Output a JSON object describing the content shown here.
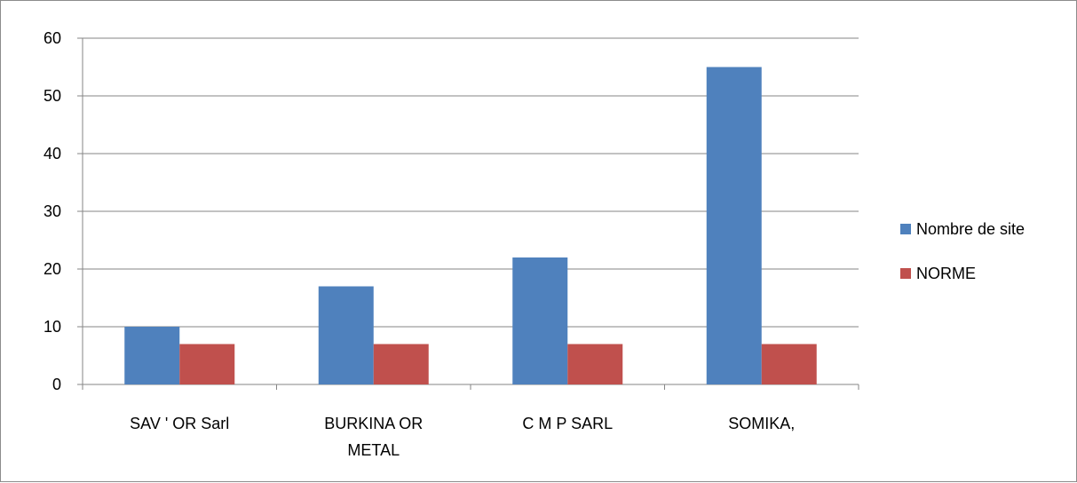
{
  "chart_data": {
    "type": "bar",
    "categories": [
      [
        "SAV ' OR Sarl"
      ],
      [
        "BURKINA OR",
        "METAL"
      ],
      [
        "C M P SARL"
      ],
      [
        "SOMIKA,"
      ]
    ],
    "series": [
      {
        "name": "Nombre de site",
        "values": [
          10,
          17,
          22,
          55
        ],
        "color": "#4f81bd"
      },
      {
        "name": "NORME",
        "values": [
          7,
          7,
          7,
          7
        ],
        "color": "#c0504d"
      }
    ],
    "ylim": [
      0,
      60
    ],
    "yticks": [
      0,
      10,
      20,
      30,
      40,
      50,
      60
    ],
    "grid": true,
    "legend": "right",
    "title": "",
    "xlabel": "",
    "ylabel": ""
  }
}
